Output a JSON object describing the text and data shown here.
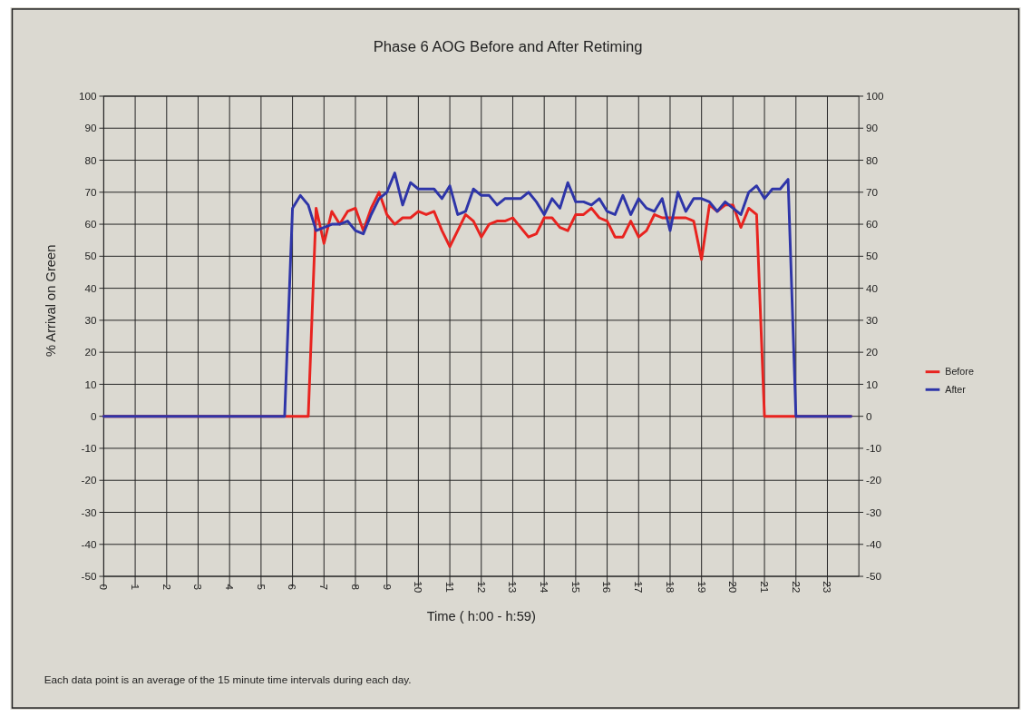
{
  "chart_data": {
    "type": "line",
    "title": "Phase 6 AOG Before and After Retiming",
    "xlabel": "Time ( h:00 - h:59)",
    "ylabel": "% Arrival on Green",
    "xlim": [
      0,
      24
    ],
    "xticks": [
      0,
      1,
      2,
      3,
      4,
      5,
      6,
      7,
      8,
      9,
      10,
      11,
      12,
      13,
      14,
      15,
      16,
      17,
      18,
      19,
      20,
      21,
      22,
      23
    ],
    "ylim": [
      -50,
      100
    ],
    "yticks": [
      -50,
      -40,
      -30,
      -20,
      -10,
      0,
      10,
      20,
      30,
      40,
      50,
      60,
      70,
      80,
      90,
      100
    ],
    "y2lim": [
      -50,
      100
    ],
    "y2ticks": [
      -50,
      -40,
      -30,
      -20,
      -10,
      0,
      10,
      20,
      30,
      40,
      50,
      60,
      70,
      80,
      90,
      100
    ],
    "grid": true,
    "legend": "right",
    "marker": "none",
    "line_style": "solid",
    "annotations": [
      "Each data point is an average of the 15 minute time intervals during each day."
    ],
    "series": [
      {
        "name": "Before",
        "color": "#e8231f",
        "x": [
          0,
          6.5,
          6.75,
          7,
          7.25,
          7.5,
          7.75,
          8,
          8.25,
          8.5,
          8.75,
          9,
          9.25,
          9.5,
          9.75,
          10,
          10.25,
          10.5,
          10.75,
          11,
          11.25,
          11.5,
          11.75,
          12,
          12.25,
          12.5,
          12.75,
          13,
          13.25,
          13.5,
          13.75,
          14,
          14.25,
          14.5,
          14.75,
          15,
          15.25,
          15.5,
          15.75,
          16,
          16.25,
          16.5,
          16.75,
          17,
          17.25,
          17.5,
          17.75,
          18,
          18.25,
          18.5,
          18.75,
          19,
          19.25,
          19.5,
          19.75,
          20,
          20.25,
          20.5,
          20.75,
          21,
          23.75
        ],
        "values": [
          0,
          0,
          65,
          54,
          64,
          60,
          64,
          65,
          58,
          65,
          70,
          63,
          60,
          62,
          62,
          64,
          63,
          64,
          58,
          53,
          58,
          63,
          61,
          56,
          60,
          61,
          61,
          62,
          59,
          56,
          57,
          62,
          62,
          59,
          58,
          63,
          63,
          65,
          62,
          61,
          56,
          56,
          61,
          56,
          58,
          63,
          62,
          62,
          62,
          62,
          61,
          49,
          66,
          64,
          66,
          66,
          59,
          65,
          63,
          0,
          0
        ]
      },
      {
        "name": "After",
        "color": "#2e35a8",
        "x": [
          0,
          5.75,
          6,
          6.25,
          6.5,
          6.75,
          7,
          7.25,
          7.5,
          7.75,
          8,
          8.25,
          8.5,
          8.75,
          9,
          9.25,
          9.5,
          9.75,
          10,
          10.25,
          10.5,
          10.75,
          11,
          11.25,
          11.5,
          11.75,
          12,
          12.25,
          12.5,
          12.75,
          13,
          13.25,
          13.5,
          13.75,
          14,
          14.25,
          14.5,
          14.75,
          15,
          15.25,
          15.5,
          15.75,
          16,
          16.25,
          16.5,
          16.75,
          17,
          17.25,
          17.5,
          17.75,
          18,
          18.25,
          18.5,
          18.75,
          19,
          19.25,
          19.5,
          19.75,
          20,
          20.25,
          20.5,
          20.75,
          21,
          21.25,
          21.5,
          21.75,
          22,
          23.75
        ],
        "values": [
          0,
          0,
          65,
          69,
          66,
          58,
          59,
          60,
          60,
          61,
          58,
          57,
          63,
          68,
          70,
          76,
          66,
          73,
          71,
          71,
          71,
          68,
          72,
          63,
          64,
          71,
          69,
          69,
          66,
          68,
          68,
          68,
          70,
          67,
          63,
          68,
          65,
          73,
          67,
          67,
          66,
          68,
          64,
          63,
          69,
          63,
          68,
          65,
          64,
          68,
          58,
          70,
          64,
          68,
          68,
          67,
          64,
          67,
          65,
          63,
          70,
          72,
          68,
          71,
          71,
          74,
          0,
          0
        ]
      }
    ]
  }
}
